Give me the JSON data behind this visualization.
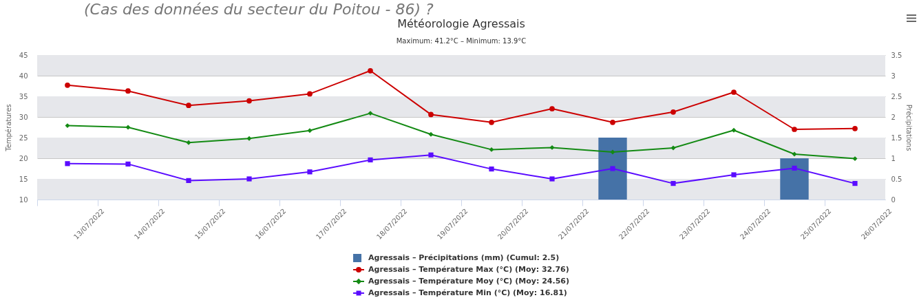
{
  "chart_data": {
    "type": "line",
    "title": "Météorologie Agressais",
    "subtitle": "Maximum: 41.2°C – Minimum: 13.9°C",
    "ylabel": "Températures",
    "y2label": "Précipitations",
    "annotations": [
      "(Cas des données du secteur du Poitou - 86) ?"
    ],
    "categories": [
      "13/07/2022",
      "14/07/2022",
      "15/07/2022",
      "16/07/2022",
      "17/07/2022",
      "18/07/2022",
      "19/07/2022",
      "20/07/2022",
      "21/07/2022",
      "22/07/2022",
      "23/07/2022",
      "24/07/2022",
      "25/07/2022",
      "26/07/2022"
    ],
    "series": [
      {
        "name": "Agressais – Précipitations (mm) (Cumul: 2.5)",
        "type": "bar",
        "axis": "y2",
        "color": "#4572a7",
        "values": [
          null,
          null,
          null,
          null,
          null,
          null,
          null,
          null,
          null,
          1.5,
          null,
          null,
          1.0,
          null
        ]
      },
      {
        "name": "Agressais – Température Max (°C) (Moy: 32.76)",
        "color": "#cc0000",
        "marker": "circle",
        "values": [
          37.7,
          36.3,
          32.8,
          33.9,
          35.6,
          41.2,
          30.6,
          28.7,
          32.0,
          28.7,
          31.2,
          36.0,
          27.0,
          27.2
        ]
      },
      {
        "name": "Agressais – Température Moy (°C) (Moy: 24.56)",
        "color": "#138a13",
        "marker": "diamond",
        "values": [
          27.9,
          27.5,
          23.8,
          24.8,
          26.7,
          30.9,
          25.8,
          22.1,
          22.6,
          21.5,
          22.5,
          26.8,
          21.0,
          19.9
        ]
      },
      {
        "name": "Agressais – Température Min (°C) (Moy: 16.81)",
        "color": "#5a0cff",
        "marker": "square",
        "values": [
          18.7,
          18.6,
          14.6,
          15.0,
          16.7,
          19.6,
          20.8,
          17.4,
          15.0,
          17.5,
          13.9,
          16.0,
          17.6,
          13.9
        ]
      }
    ],
    "ylim": [
      10,
      45
    ],
    "yticks": [
      10,
      15,
      20,
      25,
      30,
      35,
      40,
      45
    ],
    "y2lim": [
      0,
      3.5
    ],
    "y2ticks": [
      0,
      0.5,
      1,
      1.5,
      2,
      2.5,
      3,
      3.5
    ],
    "grid": "y",
    "legend": "bottom"
  }
}
